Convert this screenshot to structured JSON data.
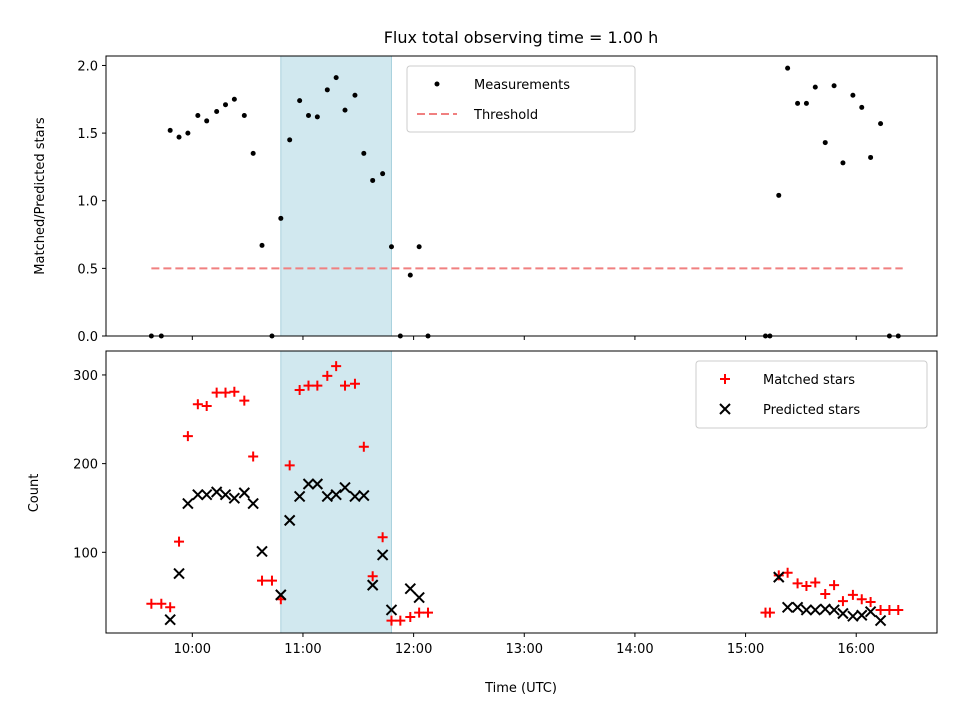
{
  "chart_data": [
    {
      "type": "scatter",
      "panel": "top",
      "title": "Flux total observing time = 1.00 h",
      "xlabel": "",
      "ylabel": "Matched/Predicted stars",
      "ylim": [
        0,
        2.07
      ],
      "yticks": [
        0.0,
        0.5,
        1.0,
        1.5,
        2.0
      ],
      "yticklabels": [
        "0.0",
        "0.5",
        "1.0",
        "1.5",
        "2.0"
      ],
      "legend": {
        "position": "top-center",
        "entries": [
          "Measurements",
          "Threshold"
        ]
      },
      "highlight_band": {
        "x": [
          10.8,
          11.8
        ],
        "color": "#d1e8ef"
      },
      "threshold": {
        "name": "Threshold",
        "y": 0.5,
        "x": [
          9.63,
          16.42
        ],
        "color": "#f08080"
      },
      "series": [
        {
          "name": "Measurements",
          "color": "#000000",
          "x": [
            9.63,
            9.72,
            9.8,
            9.88,
            9.96,
            10.05,
            10.13,
            10.22,
            10.3,
            10.38,
            10.47,
            10.55,
            10.63,
            10.72,
            10.8,
            10.88,
            10.97,
            11.05,
            11.13,
            11.22,
            11.3,
            11.38,
            11.47,
            11.55,
            11.63,
            11.72,
            11.8,
            11.88,
            11.97,
            12.05,
            12.13,
            15.18,
            15.22,
            15.3,
            15.38,
            15.47,
            15.55,
            15.63,
            15.72,
            15.8,
            15.88,
            15.97,
            16.05,
            16.13,
            16.22,
            16.3,
            16.38
          ],
          "y": [
            0.0,
            0.0,
            1.52,
            1.47,
            1.5,
            1.63,
            1.59,
            1.66,
            1.71,
            1.75,
            1.63,
            1.35,
            0.67,
            0.0,
            0.87,
            1.45,
            1.74,
            1.63,
            1.62,
            1.82,
            1.91,
            1.67,
            1.78,
            1.35,
            1.15,
            1.2,
            0.66,
            0.0,
            0.45,
            0.66,
            0.0,
            0.0,
            0.0,
            1.04,
            1.98,
            1.72,
            1.72,
            1.84,
            1.43,
            1.85,
            1.28,
            1.78,
            1.69,
            1.32,
            1.57,
            0.0,
            0.0
          ]
        }
      ]
    },
    {
      "type": "scatter",
      "panel": "bottom",
      "xlabel": "Time (UTC)",
      "ylabel": "Count",
      "ylim": [
        9,
        327
      ],
      "yticks": [
        100,
        200,
        300
      ],
      "yticklabels": [
        "100",
        "200",
        "300"
      ],
      "xlim": [
        9.22,
        16.73
      ],
      "xticks": [
        10,
        11,
        12,
        13,
        14,
        15,
        16
      ],
      "xticklabels": [
        "10:00",
        "11:00",
        "12:00",
        "13:00",
        "14:00",
        "15:00",
        "16:00"
      ],
      "legend": {
        "position": "upper-right",
        "entries": [
          "Matched stars",
          "Predicted stars"
        ]
      },
      "highlight_band": {
        "x": [
          10.8,
          11.8
        ],
        "color": "#d1e8ef"
      },
      "series": [
        {
          "name": "Matched stars",
          "marker": "plus",
          "color": "#ff0000",
          "x": [
            9.63,
            9.72,
            9.8,
            9.88,
            9.96,
            10.05,
            10.13,
            10.22,
            10.3,
            10.38,
            10.47,
            10.55,
            10.63,
            10.72,
            10.8,
            10.88,
            10.97,
            11.05,
            11.13,
            11.22,
            11.3,
            11.38,
            11.47,
            11.55,
            11.63,
            11.72,
            11.8,
            11.88,
            11.97,
            12.05,
            12.13,
            15.18,
            15.22,
            15.3,
            15.38,
            15.47,
            15.55,
            15.63,
            15.72,
            15.8,
            15.88,
            15.97,
            16.05,
            16.13,
            16.22,
            16.3,
            16.38
          ],
          "y": [
            42,
            42,
            38,
            112,
            231,
            267,
            265,
            280,
            280,
            281,
            271,
            208,
            68,
            68,
            47,
            198,
            283,
            288,
            288,
            299,
            310,
            288,
            290,
            219,
            73,
            117,
            23,
            23,
            27,
            32,
            32,
            32,
            32,
            74,
            77,
            65,
            62,
            66,
            53,
            63,
            45,
            52,
            47,
            44,
            35,
            35,
            35
          ]
        },
        {
          "name": "Predicted stars",
          "marker": "x",
          "color": "#000000",
          "x": [
            9.8,
            9.88,
            9.96,
            10.05,
            10.13,
            10.22,
            10.3,
            10.38,
            10.47,
            10.55,
            10.63,
            10.8,
            10.88,
            10.97,
            11.05,
            11.13,
            11.22,
            11.3,
            11.38,
            11.47,
            11.55,
            11.63,
            11.72,
            11.8,
            11.97,
            12.05,
            15.3,
            15.38,
            15.47,
            15.55,
            15.63,
            15.72,
            15.8,
            15.88,
            15.97,
            16.05,
            16.13,
            16.22
          ],
          "y": [
            24,
            76,
            155,
            165,
            165,
            168,
            165,
            161,
            167,
            155,
            101,
            52,
            136,
            163,
            177,
            177,
            163,
            165,
            173,
            163,
            164,
            63,
            97,
            35,
            59,
            49,
            72,
            38,
            38,
            35,
            35,
            36,
            35,
            31,
            28,
            29,
            33,
            23
          ]
        }
      ]
    }
  ]
}
